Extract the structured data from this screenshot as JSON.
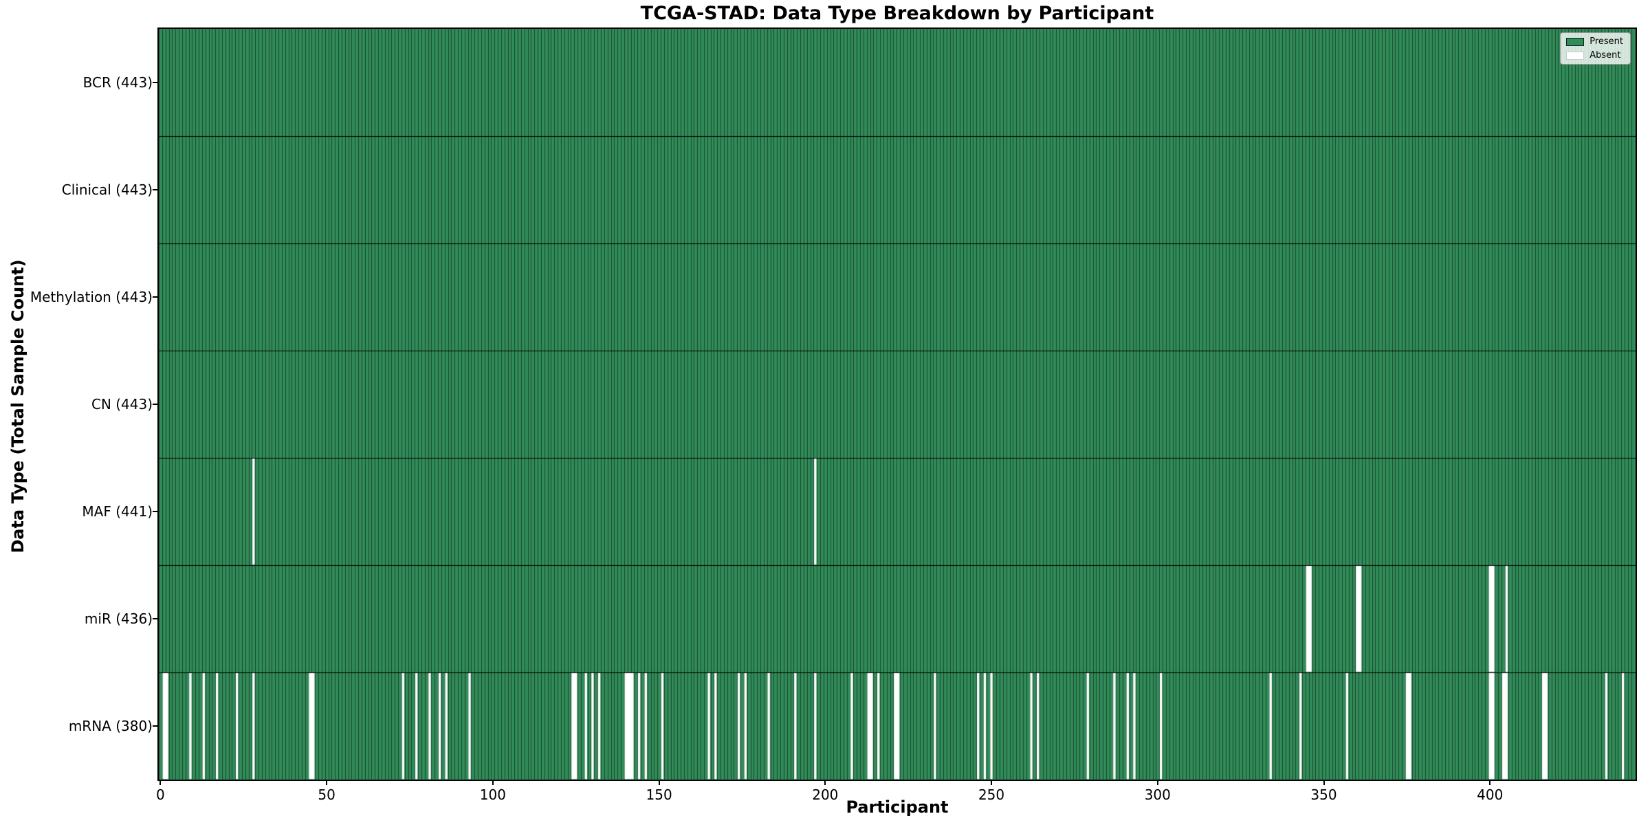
{
  "chart_data": {
    "type": "heatmap",
    "title": "TCGA-STAD: Data Type Breakdown by Participant",
    "xlabel": "Participant",
    "ylabel": "Data Type (Total Sample Count)",
    "x_ticks": [
      0,
      50,
      100,
      150,
      200,
      250,
      300,
      350,
      400
    ],
    "n_participants": 443,
    "grid": false,
    "legend": {
      "position": "upper right",
      "items": [
        {
          "label": "Present",
          "color": "#318c59"
        },
        {
          "label": "Absent",
          "color": "#ffffff"
        }
      ]
    },
    "colors": {
      "present": "#318c59",
      "absent": "#ffffff",
      "bar_edge": "rgba(0,0,0,0.5)",
      "row_separator": "#000000",
      "plot_border": "#000000"
    },
    "rows": [
      {
        "name": "BCR",
        "count": 443,
        "tick_label": "BCR (443)",
        "absent": []
      },
      {
        "name": "Clinical",
        "count": 443,
        "tick_label": "Clinical (443)",
        "absent": []
      },
      {
        "name": "Methylation",
        "count": 443,
        "tick_label": "Methylation (443)",
        "absent": []
      },
      {
        "name": "CN",
        "count": 443,
        "tick_label": "CN (443)",
        "absent": []
      },
      {
        "name": "MAF",
        "count": 441,
        "tick_label": "MAF (441)",
        "absent": [
          28,
          197
        ]
      },
      {
        "name": "miR",
        "count": 436,
        "tick_label": "miR (436)",
        "absent": [
          345,
          346,
          360,
          361,
          400,
          401,
          405
        ]
      },
      {
        "name": "mRNA",
        "count": 380,
        "tick_label": "mRNA (380)",
        "absent": [
          1,
          2,
          9,
          13,
          17,
          23,
          28,
          45,
          46,
          73,
          77,
          81,
          84,
          86,
          93,
          124,
          125,
          128,
          130,
          132,
          140,
          141,
          142,
          144,
          146,
          151,
          165,
          167,
          174,
          176,
          183,
          191,
          197,
          208,
          213,
          214,
          216,
          221,
          222,
          233,
          246,
          248,
          250,
          262,
          264,
          279,
          287,
          291,
          293,
          301,
          334,
          343,
          357,
          375,
          376,
          400,
          401,
          404,
          405,
          416,
          417,
          435,
          440
        ]
      }
    ]
  }
}
